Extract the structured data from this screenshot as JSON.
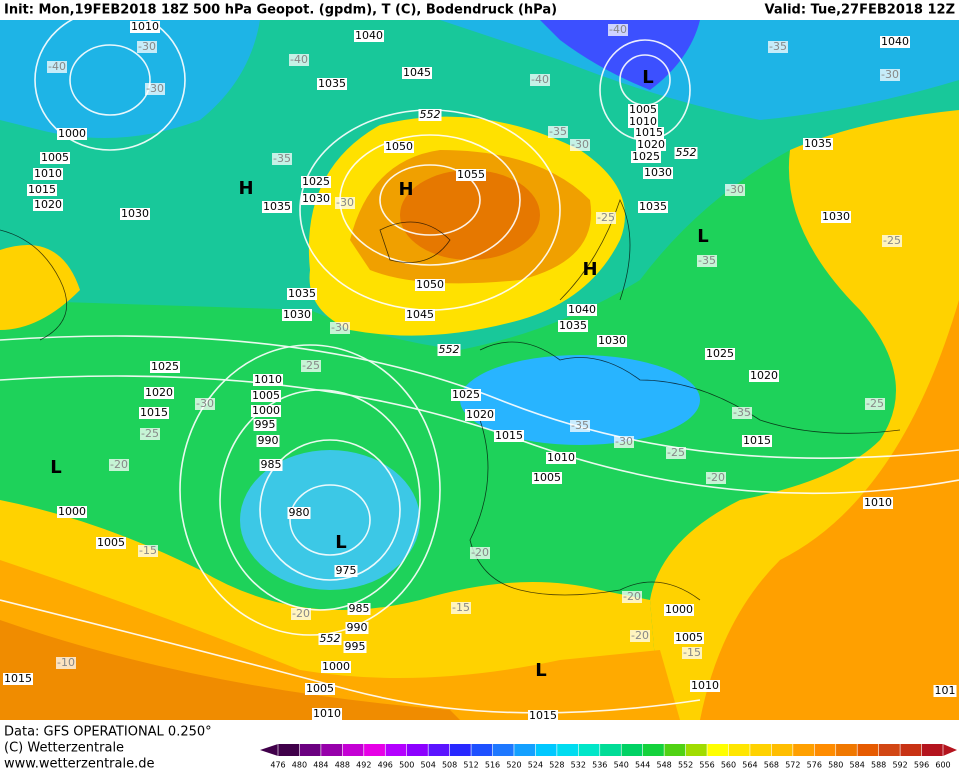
{
  "header": {
    "init": "Init: Mon,19FEB2018 18Z 500 hPa Geopot. (gpdm), T (C), Bodendruck (hPa)",
    "valid": "Valid: Tue,27FEB2018 12Z"
  },
  "footer": [
    "Data: GFS OPERATIONAL 0.250°",
    "(C) Wetterzentrale",
    "www.wetterzentrale.de"
  ],
  "colorbar": {
    "ticks": [
      476,
      480,
      484,
      488,
      492,
      496,
      500,
      504,
      508,
      512,
      516,
      520,
      524,
      528,
      532,
      536,
      540,
      544,
      548,
      552,
      556,
      560,
      564,
      568,
      572,
      576,
      580,
      584,
      588,
      592,
      596,
      600
    ],
    "colors": [
      "#40004a",
      "#6b0080",
      "#9600aa",
      "#c400d4",
      "#e600e6",
      "#b400ff",
      "#8c00ff",
      "#5a14ff",
      "#2828ff",
      "#1e50ff",
      "#1e78ff",
      "#14a0ff",
      "#00c8ff",
      "#00dcf0",
      "#00e6c8",
      "#00dc96",
      "#00d264",
      "#14d23c",
      "#50d214",
      "#a0dc00",
      "#ffff00",
      "#ffe600",
      "#ffd200",
      "#ffbe00",
      "#ffa000",
      "#ff8c00",
      "#f07800",
      "#e65a00",
      "#d24614",
      "#c83214",
      "#b4141e"
    ]
  },
  "map": {
    "labels": [
      "1010",
      "-30",
      "-40",
      "-30",
      "1000",
      "1005",
      "1010",
      "1015",
      "1020",
      "1030",
      "H",
      "1040",
      "-40",
      "1035",
      "1045",
      "552",
      "1050",
      "-35",
      "1025",
      "1030",
      "-30",
      "H",
      "1055",
      "1035",
      "-25",
      "H",
      "1050",
      "1035",
      "1030",
      "1045",
      "-30",
      "552",
      "1040",
      "1035",
      "1030",
      "-40",
      "-40",
      "L",
      "1005",
      "1010",
      "1015",
      "1020",
      "1025",
      "552",
      "1030",
      "1035",
      "-35",
      "-30",
      "-35",
      "1040",
      "-30",
      "1035",
      "-30",
      "1030",
      "L",
      "-35",
      "-25",
      "1025",
      "1020",
      "-35",
      "-25",
      "1015",
      "1010",
      "-25",
      "-30",
      "-35",
      "-20",
      "1025",
      "1020",
      "1015",
      "-30",
      "-25",
      "1010",
      "1005",
      "1000",
      "995",
      "990",
      "985",
      "-25",
      "-20",
      "L",
      "1025",
      "1020",
      "1015",
      "1010",
      "1005",
      "980",
      "L",
      "975",
      "1000",
      "1005",
      "-15",
      "-20",
      "-20",
      "-15",
      "985",
      "990",
      "995",
      "552",
      "1000",
      "1005",
      "1010",
      "-10",
      "1015",
      "1015",
      "L",
      "-20",
      "1000",
      "-20",
      "1005",
      "-15",
      "1010",
      "101"
    ]
  }
}
